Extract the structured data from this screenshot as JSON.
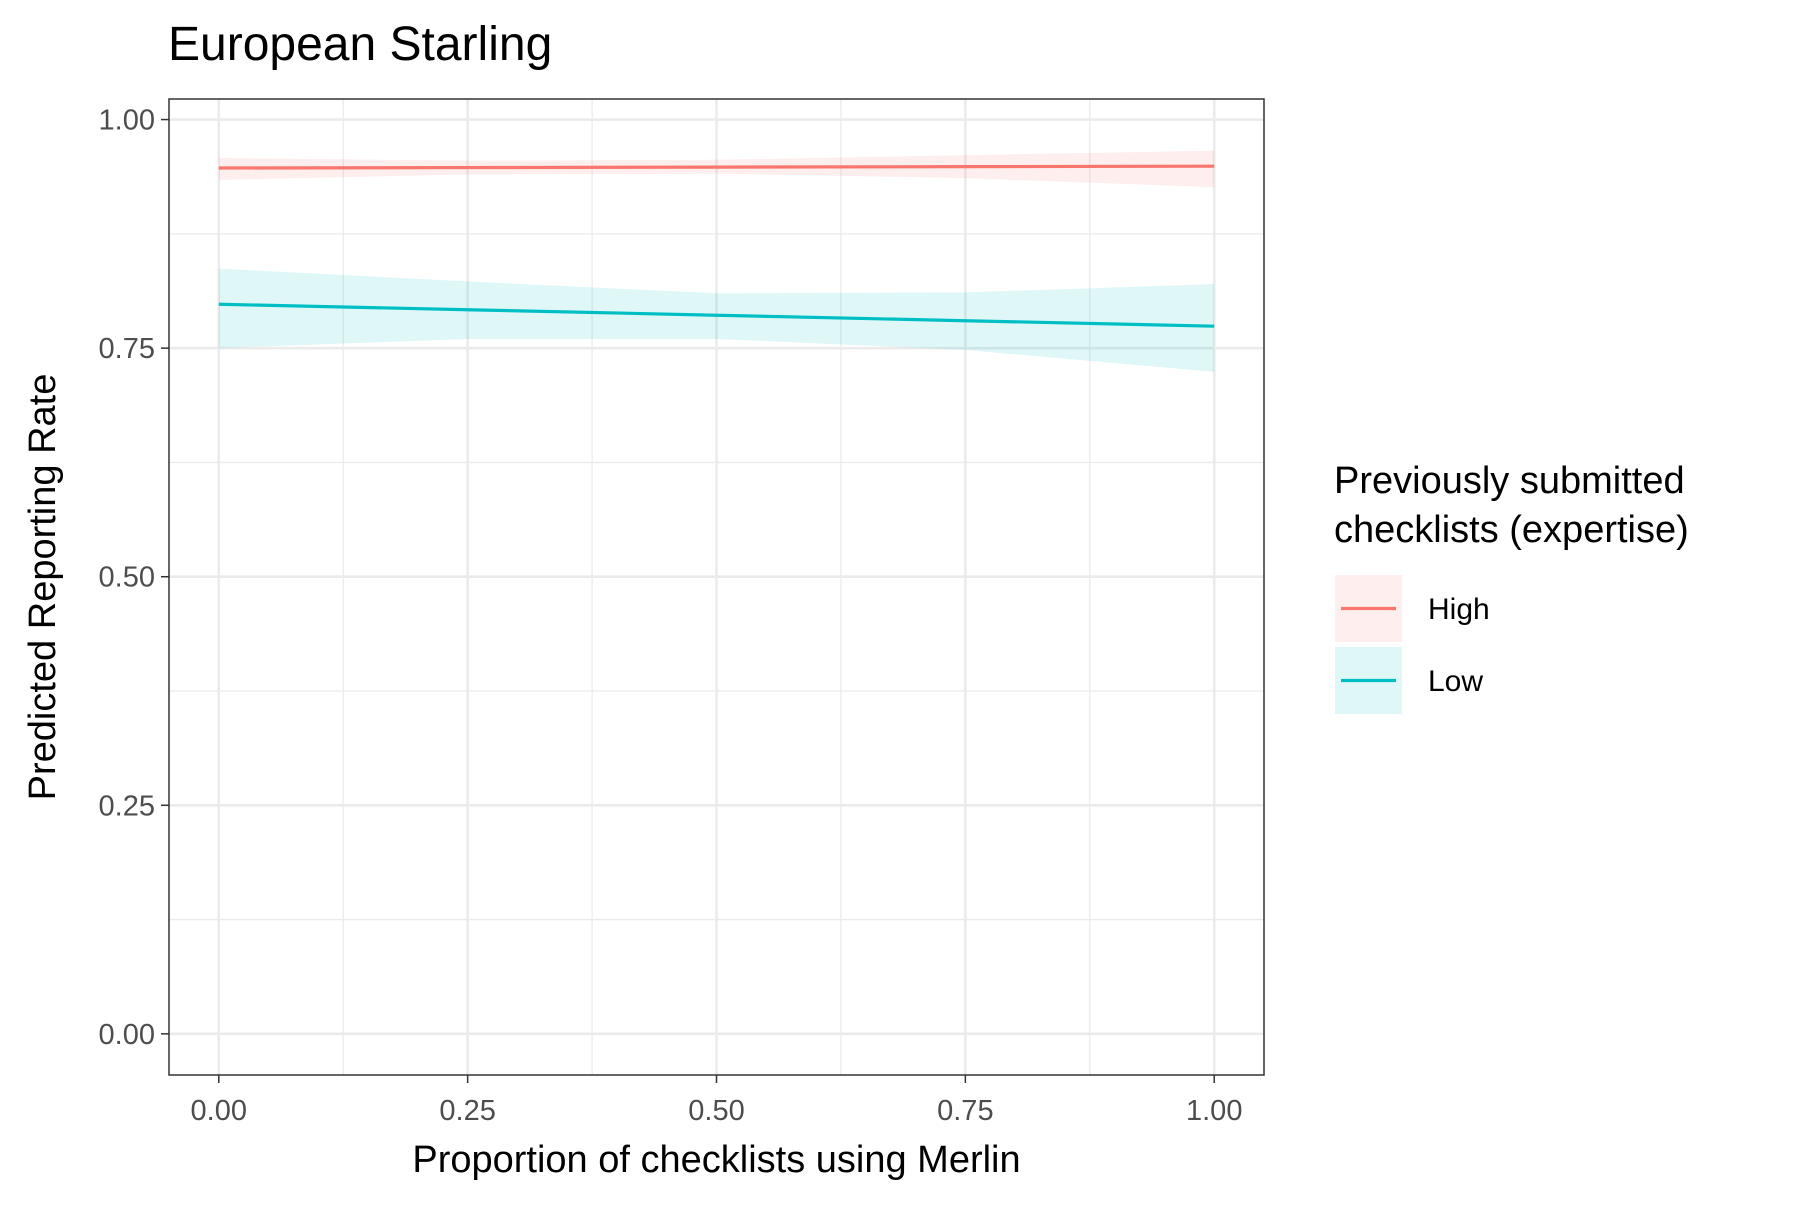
{
  "chart_data": {
    "type": "line",
    "title": "European Starling",
    "xlabel": "Proportion of checklists using Merlin",
    "ylabel": "Predicted Reporting Rate",
    "xlim": [
      -0.05,
      1.05
    ],
    "ylim": [
      -0.045,
      1.0225
    ],
    "x_ticks": [
      0,
      0.25,
      0.5,
      0.75,
      1
    ],
    "x_tick_labels": [
      "0.00",
      "0.25",
      "0.50",
      "0.75",
      "1.00"
    ],
    "y_ticks": [
      0,
      0.25,
      0.5,
      0.75,
      1
    ],
    "y_tick_labels": [
      "0.00",
      "0.25",
      "0.50",
      "0.75",
      "1.00"
    ],
    "grid": true,
    "legend": {
      "title_lines": [
        "Previously submitted",
        "checklists (expertise)"
      ],
      "position": "right"
    },
    "series": [
      {
        "name": "High",
        "color": "#F8766D",
        "x": [
          0,
          0.25,
          0.5,
          0.75,
          1
        ],
        "y": [
          0.947,
          0.9475,
          0.948,
          0.9485,
          0.949
        ],
        "y_lower": [
          0.934,
          0.94,
          0.941,
          0.936,
          0.926
        ],
        "y_upper": [
          0.958,
          0.955,
          0.956,
          0.961,
          0.966
        ]
      },
      {
        "name": "Low",
        "color": "#00BFC4",
        "x": [
          0,
          0.25,
          0.5,
          0.75,
          1
        ],
        "y": [
          0.798,
          0.792,
          0.786,
          0.78,
          0.774
        ],
        "y_lower": [
          0.75,
          0.76,
          0.76,
          0.748,
          0.724
        ],
        "y_upper": [
          0.837,
          0.823,
          0.81,
          0.811,
          0.82
        ]
      }
    ]
  }
}
